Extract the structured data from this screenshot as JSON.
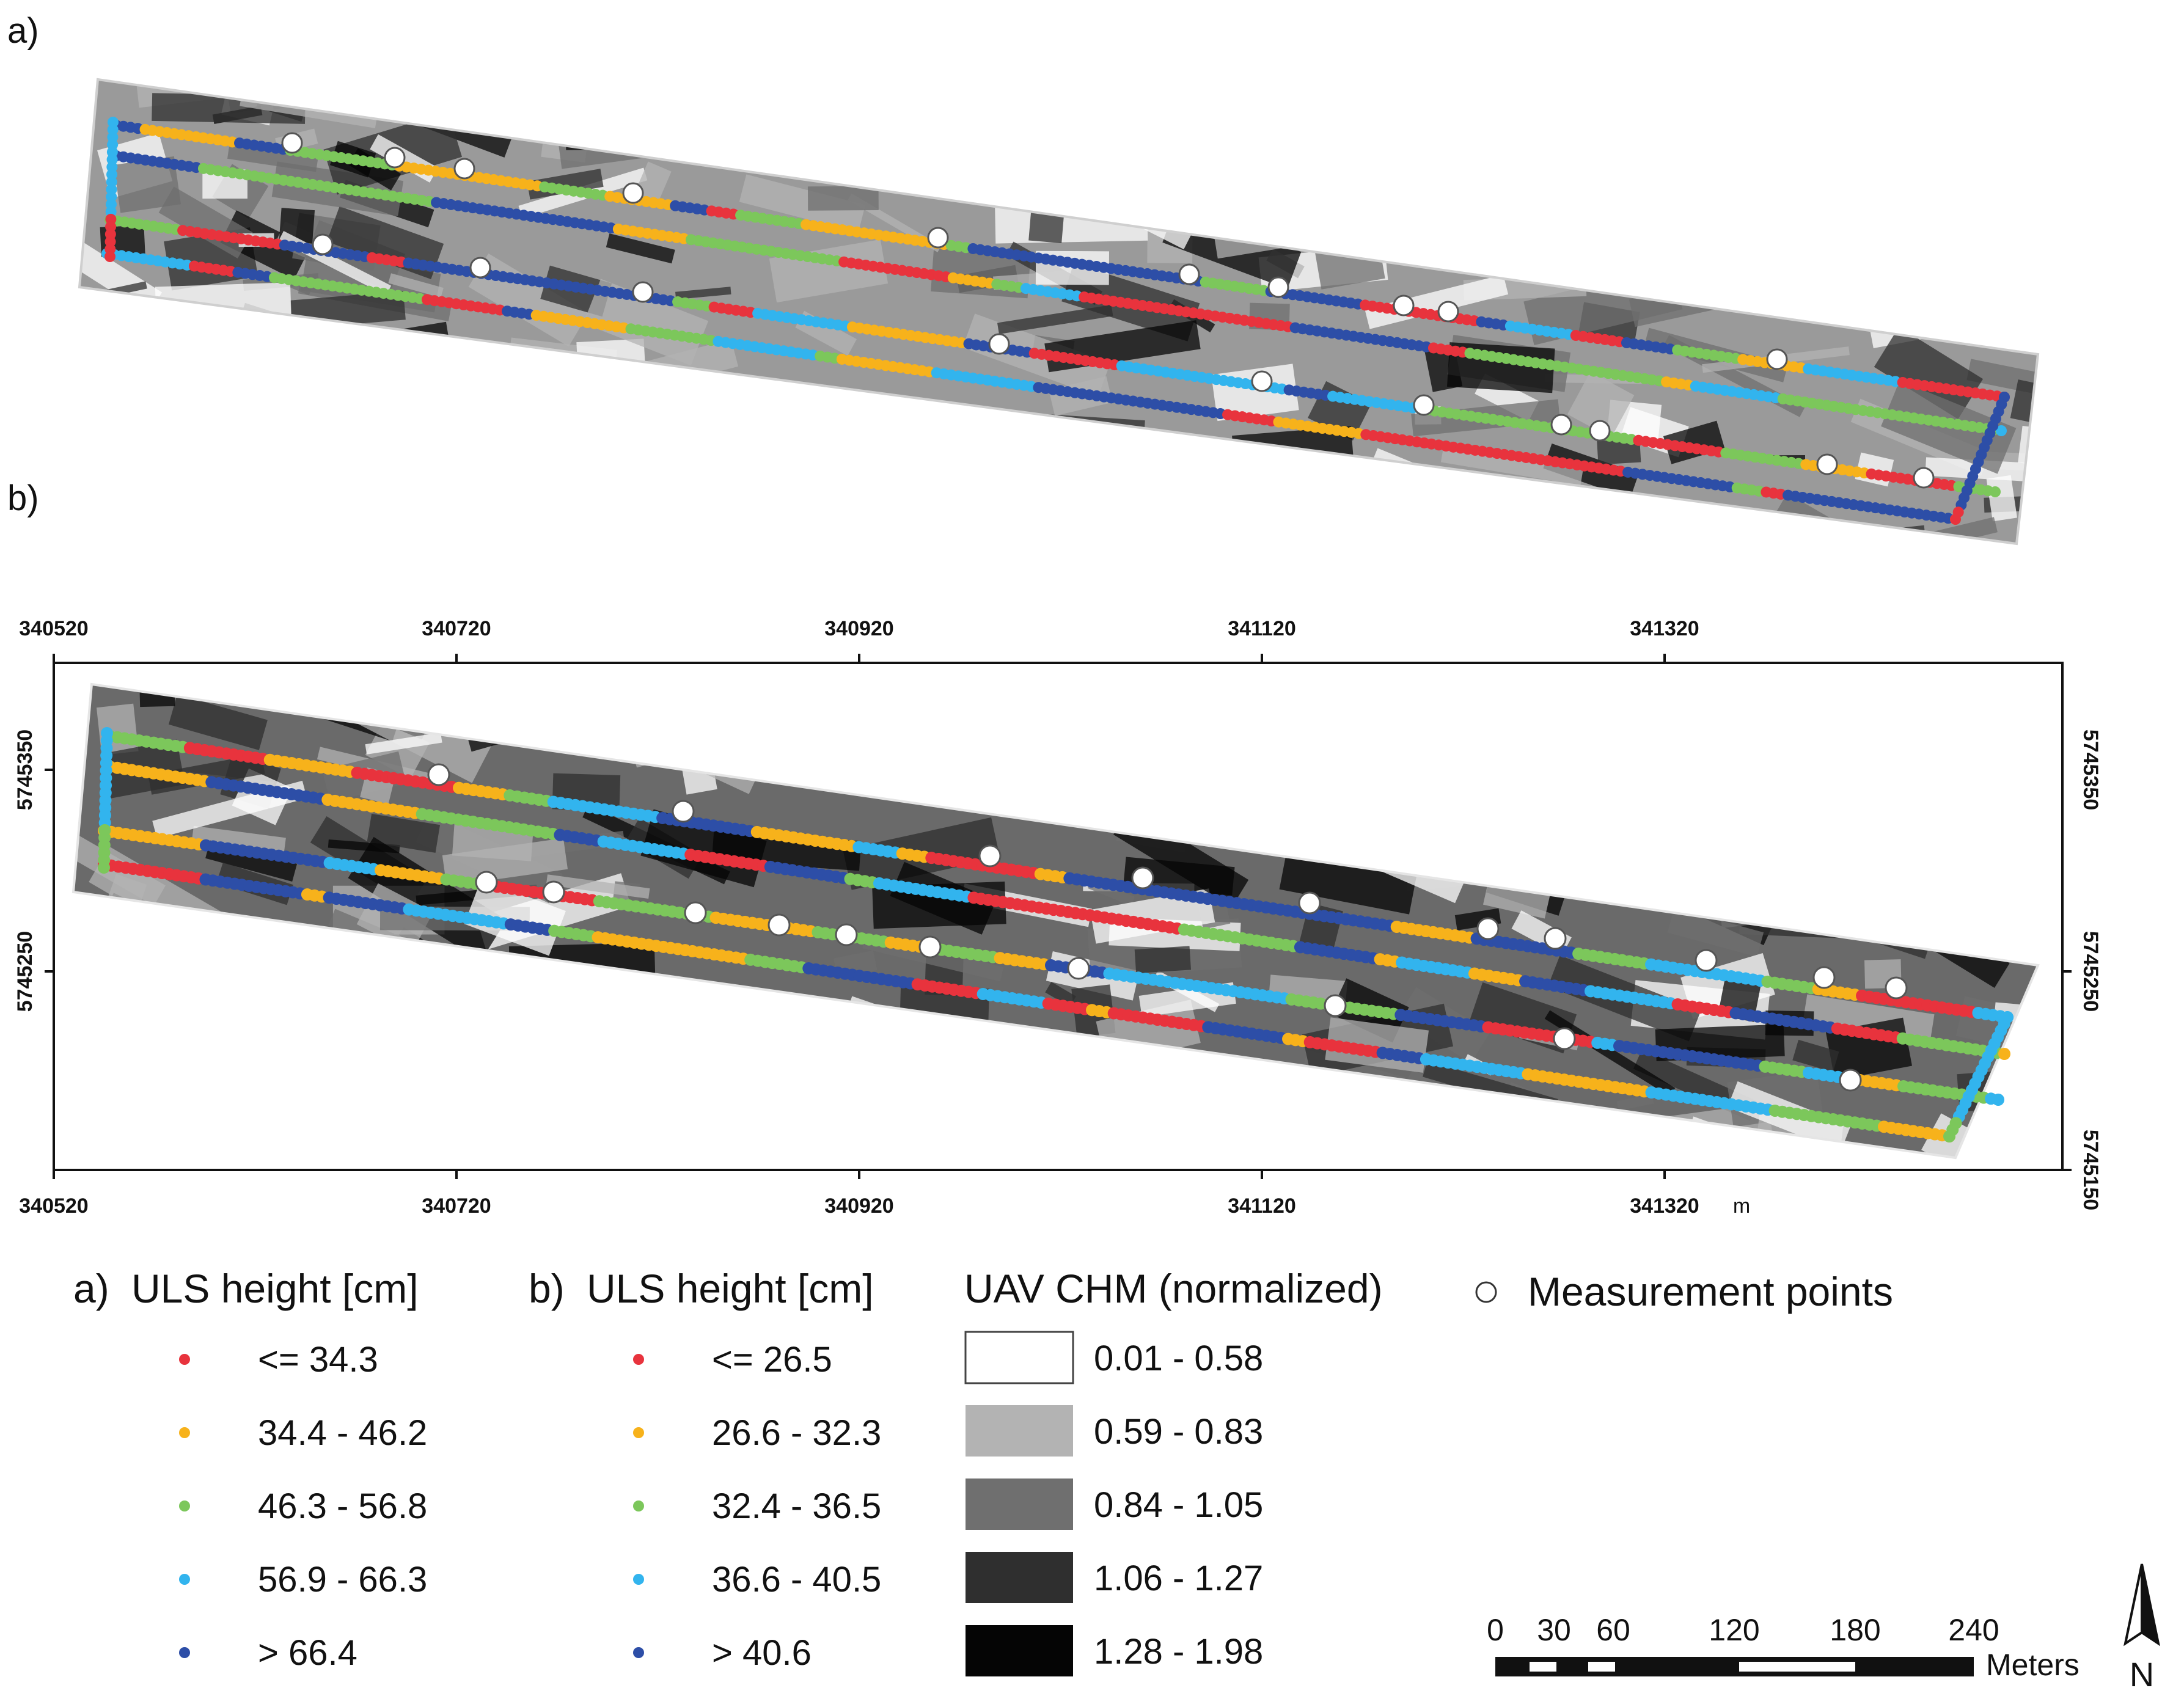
{
  "panels": {
    "a": {
      "label": "a)"
    },
    "b": {
      "label": "b)"
    }
  },
  "axes_b": {
    "x_ticks": [
      "340520",
      "340720",
      "340920",
      "341120",
      "341320"
    ],
    "y_ticks": [
      "5745350",
      "5745250",
      "5745150"
    ],
    "x_unit": "m"
  },
  "legend": {
    "a": {
      "prefix": "a)",
      "title": "ULS height [cm]",
      "classes": [
        {
          "label": "<= 34.3",
          "color": "#e8333d"
        },
        {
          "label": "34.4 - 46.2",
          "color": "#f7b21b"
        },
        {
          "label": "46.3 - 56.8",
          "color": "#7cc75b"
        },
        {
          "label": "56.9 - 66.3",
          "color": "#32b4ee"
        },
        {
          "label": "> 66.4",
          "color": "#2d4ea7"
        }
      ]
    },
    "b": {
      "prefix": "b)",
      "title": "ULS height [cm]",
      "classes": [
        {
          "label": "<= 26.5",
          "color": "#e8333d"
        },
        {
          "label": "26.6 - 32.3",
          "color": "#f7b21b"
        },
        {
          "label": "32.4 - 36.5",
          "color": "#7cc75b"
        },
        {
          "label": "36.6 - 40.5",
          "color": "#32b4ee"
        },
        {
          "label": "> 40.6",
          "color": "#2d4ea7"
        }
      ]
    },
    "chm": {
      "title": "UAV CHM (normalized)",
      "classes": [
        {
          "label": "0.01 - 0.58",
          "color": "#ffffff"
        },
        {
          "label": "0.59 - 0.83",
          "color": "#b3b3b3"
        },
        {
          "label": "0.84 - 1.05",
          "color": "#6f6f6f"
        },
        {
          "label": "1.06 - 1.27",
          "color": "#2f2f2f"
        },
        {
          "label": "1.28 - 1.98",
          "color": "#050505"
        }
      ]
    },
    "points": {
      "label": "Measurement points"
    }
  },
  "scalebar": {
    "labels": [
      "0",
      "30",
      "60",
      "120",
      "180",
      "240"
    ],
    "unit": "Meters",
    "north": "N"
  }
}
